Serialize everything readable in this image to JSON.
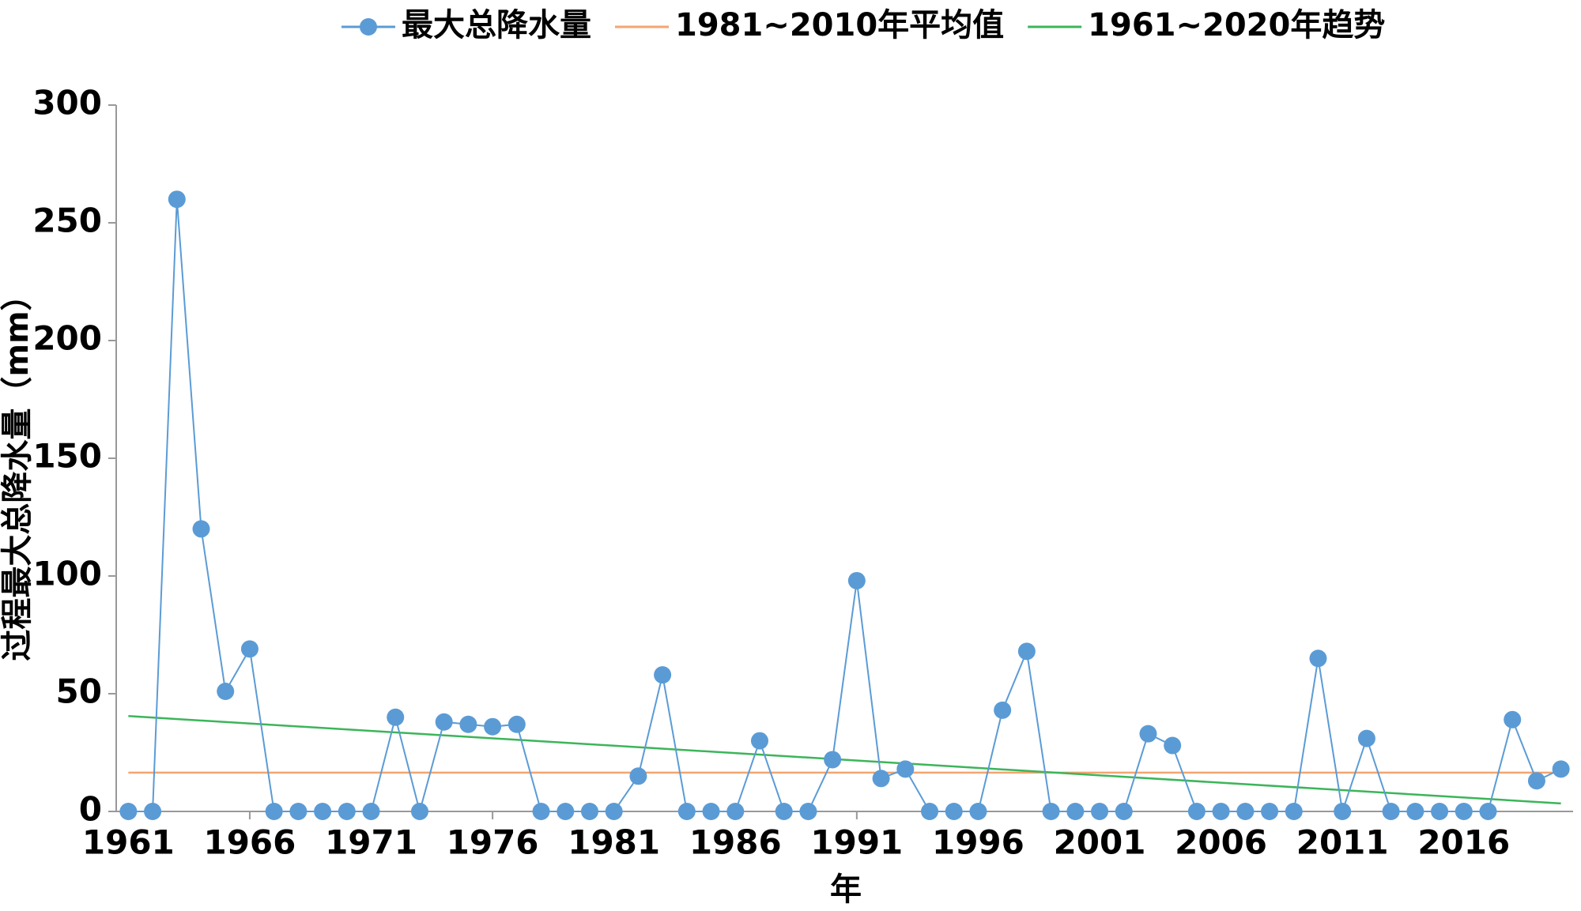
{
  "chart_data": {
    "type": "line",
    "x_label": "年",
    "y_label": "过程最大总降水量（mm）",
    "xlim": [
      1960.5,
      2020.5
    ],
    "xticks": [
      1961,
      1966,
      1971,
      1976,
      1981,
      1986,
      1991,
      1996,
      2001,
      2006,
      2011,
      2016
    ],
    "ylim": [
      0,
      300
    ],
    "yticks": [
      0,
      50,
      100,
      150,
      200,
      250,
      300
    ],
    "legend": "top",
    "series": [
      {
        "name": "最大总降水量",
        "color": "#5b9bd5",
        "marker": "circle",
        "x": [
          1961,
          1962,
          1963,
          1964,
          1965,
          1966,
          1967,
          1968,
          1969,
          1970,
          1971,
          1972,
          1973,
          1974,
          1975,
          1976,
          1977,
          1978,
          1979,
          1980,
          1981,
          1982,
          1983,
          1984,
          1985,
          1986,
          1987,
          1988,
          1989,
          1990,
          1991,
          1992,
          1993,
          1994,
          1995,
          1996,
          1997,
          1998,
          1999,
          2000,
          2001,
          2002,
          2003,
          2004,
          2005,
          2006,
          2007,
          2008,
          2009,
          2010,
          2011,
          2012,
          2013,
          2014,
          2015,
          2016,
          2017,
          2018,
          2019,
          2020
        ],
        "values": [
          0,
          0,
          260,
          120,
          51,
          69,
          0,
          0,
          0,
          0,
          0,
          40,
          0,
          38,
          37,
          36,
          37,
          0,
          0,
          0,
          0,
          15,
          58,
          0,
          0,
          0,
          30,
          0,
          0,
          22,
          98,
          14,
          18,
          0,
          0,
          0,
          43,
          68,
          0,
          0,
          0,
          0,
          33,
          28,
          0,
          0,
          0,
          0,
          0,
          65,
          0,
          31,
          0,
          0,
          0,
          0,
          0,
          39,
          13,
          18
        ]
      },
      {
        "name": "1981~2010年平均值",
        "color": "#f4a470",
        "x": [
          1961,
          2020
        ],
        "values": [
          16.5,
          16.5
        ]
      },
      {
        "name": "1961~2020年趋势",
        "color": "#3cb55a",
        "x": [
          1961,
          2020
        ],
        "values": [
          40.5,
          3.4
        ]
      }
    ]
  }
}
